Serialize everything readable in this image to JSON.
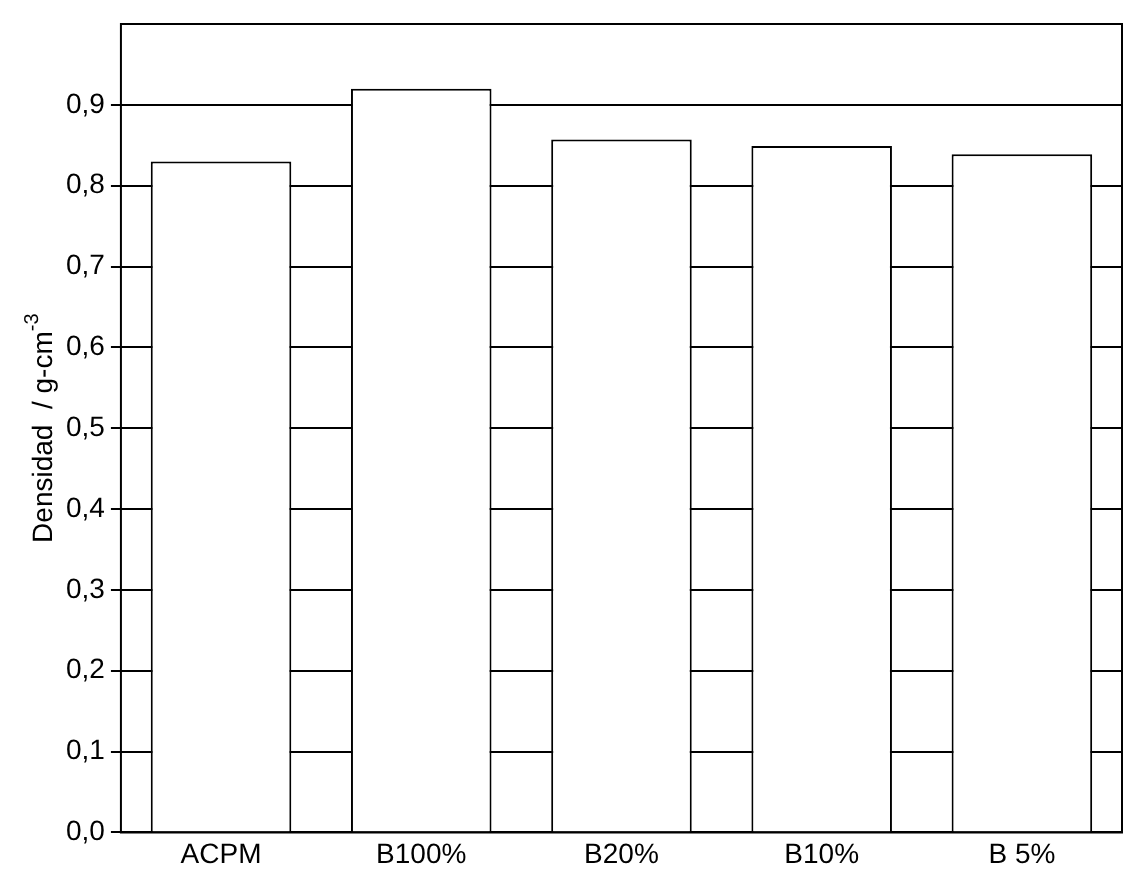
{
  "chart_data": {
    "type": "bar",
    "ylabel": "Densidad  / g-cm$^{-3}$",
    "categories": [
      "ACPM",
      "B100%",
      "B20%",
      "B10%",
      "B 5%"
    ],
    "values": [
      0.83,
      0.92,
      0.857,
      0.849,
      0.839
    ],
    "color": "#ffffff",
    "ylim": [
      0,
      1.0
    ],
    "yticks": [
      {
        "value": 0,
        "label": "0,0"
      },
      {
        "value": 0.1,
        "label": "0,1"
      },
      {
        "value": 0.2,
        "label": "0,2"
      },
      {
        "value": 0.3,
        "label": "0,3"
      },
      {
        "value": 0.4,
        "label": "0,4"
      },
      {
        "value": 0.5,
        "label": "0,5"
      },
      {
        "value": 0.6,
        "label": "0,6"
      },
      {
        "value": 0.7,
        "label": "0,7"
      },
      {
        "value": 0.8,
        "label": "0,8"
      },
      {
        "value": 0.9,
        "label": "0,9"
      }
    ],
    "grid": "y",
    "legend": false
  }
}
